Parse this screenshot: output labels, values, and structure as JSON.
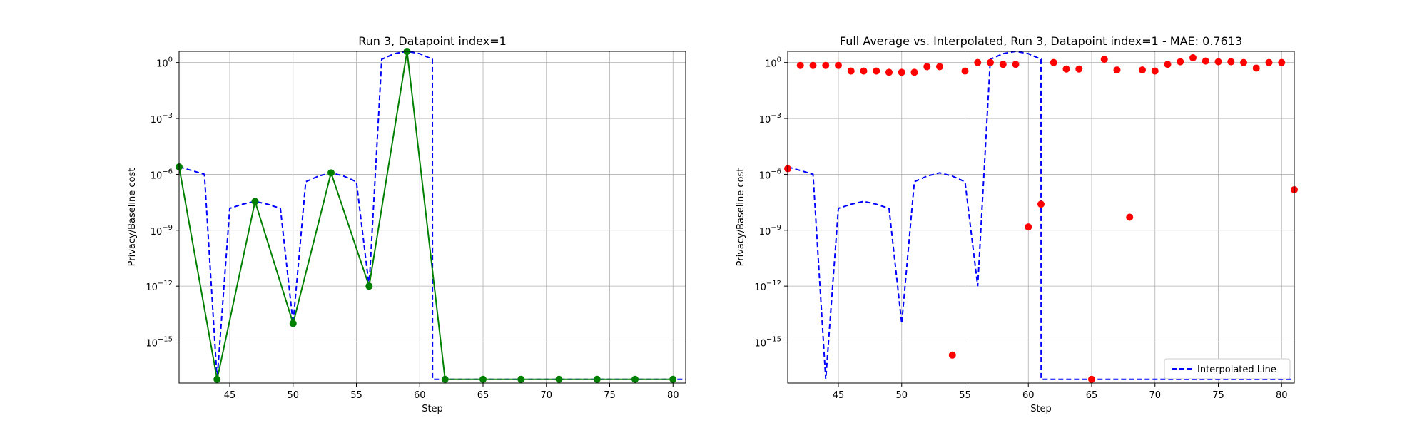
{
  "chart_data": [
    {
      "type": "line",
      "title": "Run 3, Datapoint index=1",
      "xlabel": "Step",
      "ylabel": "Privacy/Baseline cost",
      "yscale": "log",
      "xlim": [
        41,
        81
      ],
      "ylim_exp": [
        -17.2,
        0.6
      ],
      "xticks": [
        45,
        50,
        55,
        60,
        65,
        70,
        75,
        80
      ],
      "yticks": [
        0,
        -3,
        -6,
        -9,
        -12,
        -15
      ],
      "ytick_labels": [
        "10^0",
        "10^-3",
        "10^-6",
        "10^-9",
        "10^-12",
        "10^-15"
      ],
      "grid": true,
      "series": [
        {
          "style": "dashed",
          "color": "#0000ff",
          "x": [
            41,
            42,
            43,
            44,
            45,
            46,
            47,
            48,
            49,
            50,
            51,
            52,
            53,
            54,
            55,
            56,
            57,
            58,
            59,
            60,
            61,
            61.01,
            62,
            63,
            64,
            65,
            66,
            67,
            68,
            69,
            70,
            71,
            72,
            73,
            74,
            75,
            76,
            77,
            78,
            79,
            80,
            81
          ],
          "y": [
            2.5e-06,
            1.6e-06,
            1e-06,
            1e-17,
            1.5e-08,
            2.5e-08,
            3.5e-08,
            2.5e-08,
            1.5e-08,
            1e-14,
            4e-07,
            8e-07,
            1.2e-06,
            8e-07,
            4e-07,
            1e-12,
            1.5,
            3,
            4,
            3,
            1.5,
            1e-17,
            1e-17,
            1e-17,
            1e-17,
            1e-17,
            1e-17,
            1e-17,
            1e-17,
            1e-17,
            1e-17,
            1e-17,
            1e-17,
            1e-17,
            1e-17,
            1e-17,
            1e-17,
            1e-17,
            1e-17,
            1e-17,
            1e-17,
            1e-17
          ]
        },
        {
          "style": "solid-markers",
          "color": "#008000",
          "marker_color": "#008000",
          "x": [
            41,
            44,
            47,
            50,
            53,
            56,
            59,
            62,
            65,
            68,
            71,
            74,
            77,
            80
          ],
          "y": [
            2.5e-06,
            1e-17,
            3.5e-08,
            1e-14,
            1.2e-06,
            1e-12,
            4,
            1e-17,
            1e-17,
            1e-17,
            1e-17,
            1e-17,
            1e-17,
            1e-17
          ]
        }
      ]
    },
    {
      "type": "scatter",
      "title": "Full Average vs. Interpolated, Run 3, Datapoint index=1 - MAE: 0.7613",
      "xlabel": "Step",
      "ylabel": "Privacy/Baseline cost",
      "yscale": "log",
      "xlim": [
        41,
        81
      ],
      "ylim_exp": [
        -17.2,
        0.6
      ],
      "xticks": [
        45,
        50,
        55,
        60,
        65,
        70,
        75,
        80
      ],
      "yticks": [
        0,
        -3,
        -6,
        -9,
        -12,
        -15
      ],
      "ytick_labels": [
        "10^0",
        "10^-3",
        "10^-6",
        "10^-9",
        "10^-12",
        "10^-15"
      ],
      "grid": true,
      "legend": {
        "position": "bottom-right",
        "entries": [
          "Interpolated Line"
        ]
      },
      "series": [
        {
          "name": "Interpolated Line",
          "style": "dashed",
          "color": "#0000ff",
          "x": [
            41,
            42,
            43,
            44,
            45,
            46,
            47,
            48,
            49,
            50,
            51,
            52,
            53,
            54,
            55,
            56,
            57,
            58,
            59,
            60,
            61,
            61.01,
            62,
            63,
            64,
            65,
            66,
            67,
            68,
            69,
            70,
            71,
            72,
            73,
            74,
            75,
            76,
            77,
            78,
            79,
            80,
            81
          ],
          "y": [
            2.5e-06,
            1.6e-06,
            1e-06,
            1e-17,
            1.5e-08,
            2.5e-08,
            3.5e-08,
            2.5e-08,
            1.5e-08,
            1e-14,
            4e-07,
            8e-07,
            1.2e-06,
            8e-07,
            4e-07,
            1e-12,
            1.5,
            3,
            4,
            3,
            1.5,
            1e-17,
            1e-17,
            1e-17,
            1e-17,
            1e-17,
            1e-17,
            1e-17,
            1e-17,
            1e-17,
            1e-17,
            1e-17,
            1e-17,
            1e-17,
            1e-17,
            1e-17,
            1e-17,
            1e-17,
            1e-17,
            1e-17,
            1e-17,
            1e-17
          ]
        },
        {
          "style": "markers",
          "color": "#ff0000",
          "x": [
            41,
            42,
            43,
            44,
            45,
            46,
            47,
            48,
            49,
            50,
            51,
            52,
            53,
            54,
            55,
            56,
            57,
            58,
            59,
            60,
            61,
            62,
            63,
            64,
            65,
            66,
            67,
            68,
            69,
            70,
            71,
            72,
            73,
            74,
            75,
            76,
            77,
            78,
            79,
            80,
            81
          ],
          "y": [
            2e-06,
            0.7,
            0.7,
            0.7,
            0.7,
            0.35,
            0.35,
            0.35,
            0.3,
            0.3,
            0.3,
            0.6,
            0.6,
            2e-16,
            0.35,
            1,
            1,
            0.8,
            0.8,
            1.5e-09,
            2.5e-08,
            1,
            0.45,
            0.45,
            1e-17,
            1.5,
            0.4,
            5e-09,
            0.4,
            0.35,
            0.8,
            1.1,
            1.8,
            1.2,
            1.1,
            1.1,
            1,
            0.5,
            1,
            1,
            1.5e-07
          ]
        }
      ]
    }
  ]
}
